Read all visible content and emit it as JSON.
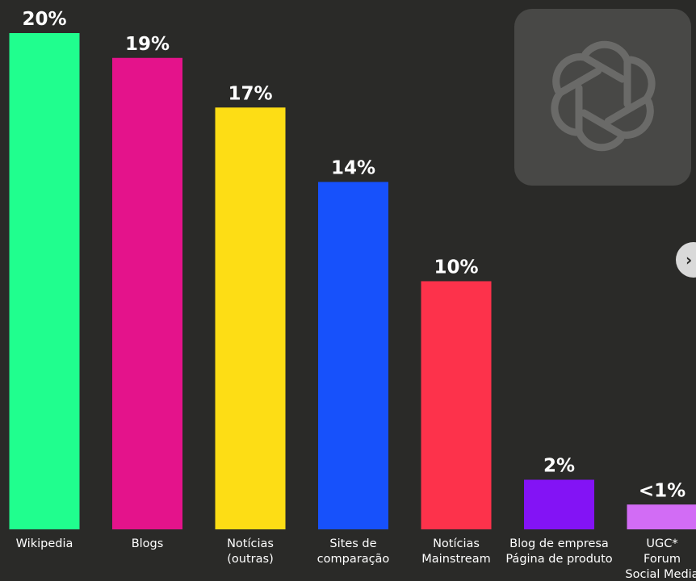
{
  "chart_data": {
    "type": "bar",
    "categories": [
      [
        "Wikipedia"
      ],
      [
        "Blogs"
      ],
      [
        "Notícias",
        "(outras)"
      ],
      [
        "Sites de",
        "comparação"
      ],
      [
        "Notícias",
        "Mainstream"
      ],
      [
        "Blog de empresa",
        "Página de produto"
      ],
      [
        "UGC*",
        "Forum",
        "Social Media"
      ]
    ],
    "values": [
      20,
      19,
      17,
      14,
      10,
      2,
      1
    ],
    "value_labels": [
      "20%",
      "19%",
      "17%",
      "14%",
      "10%",
      "2%",
      "<1%"
    ],
    "colors": [
      "#20fe8e",
      "#e4138b",
      "#fddd15",
      "#1751fb",
      "#fd324b",
      "#8313f5",
      "#d26cf5"
    ],
    "ylim": [
      0,
      20
    ],
    "grid": false,
    "legend": "none"
  },
  "logo": {
    "icon": "openai-logo-icon"
  },
  "nav": {
    "next_glyph": "›"
  }
}
